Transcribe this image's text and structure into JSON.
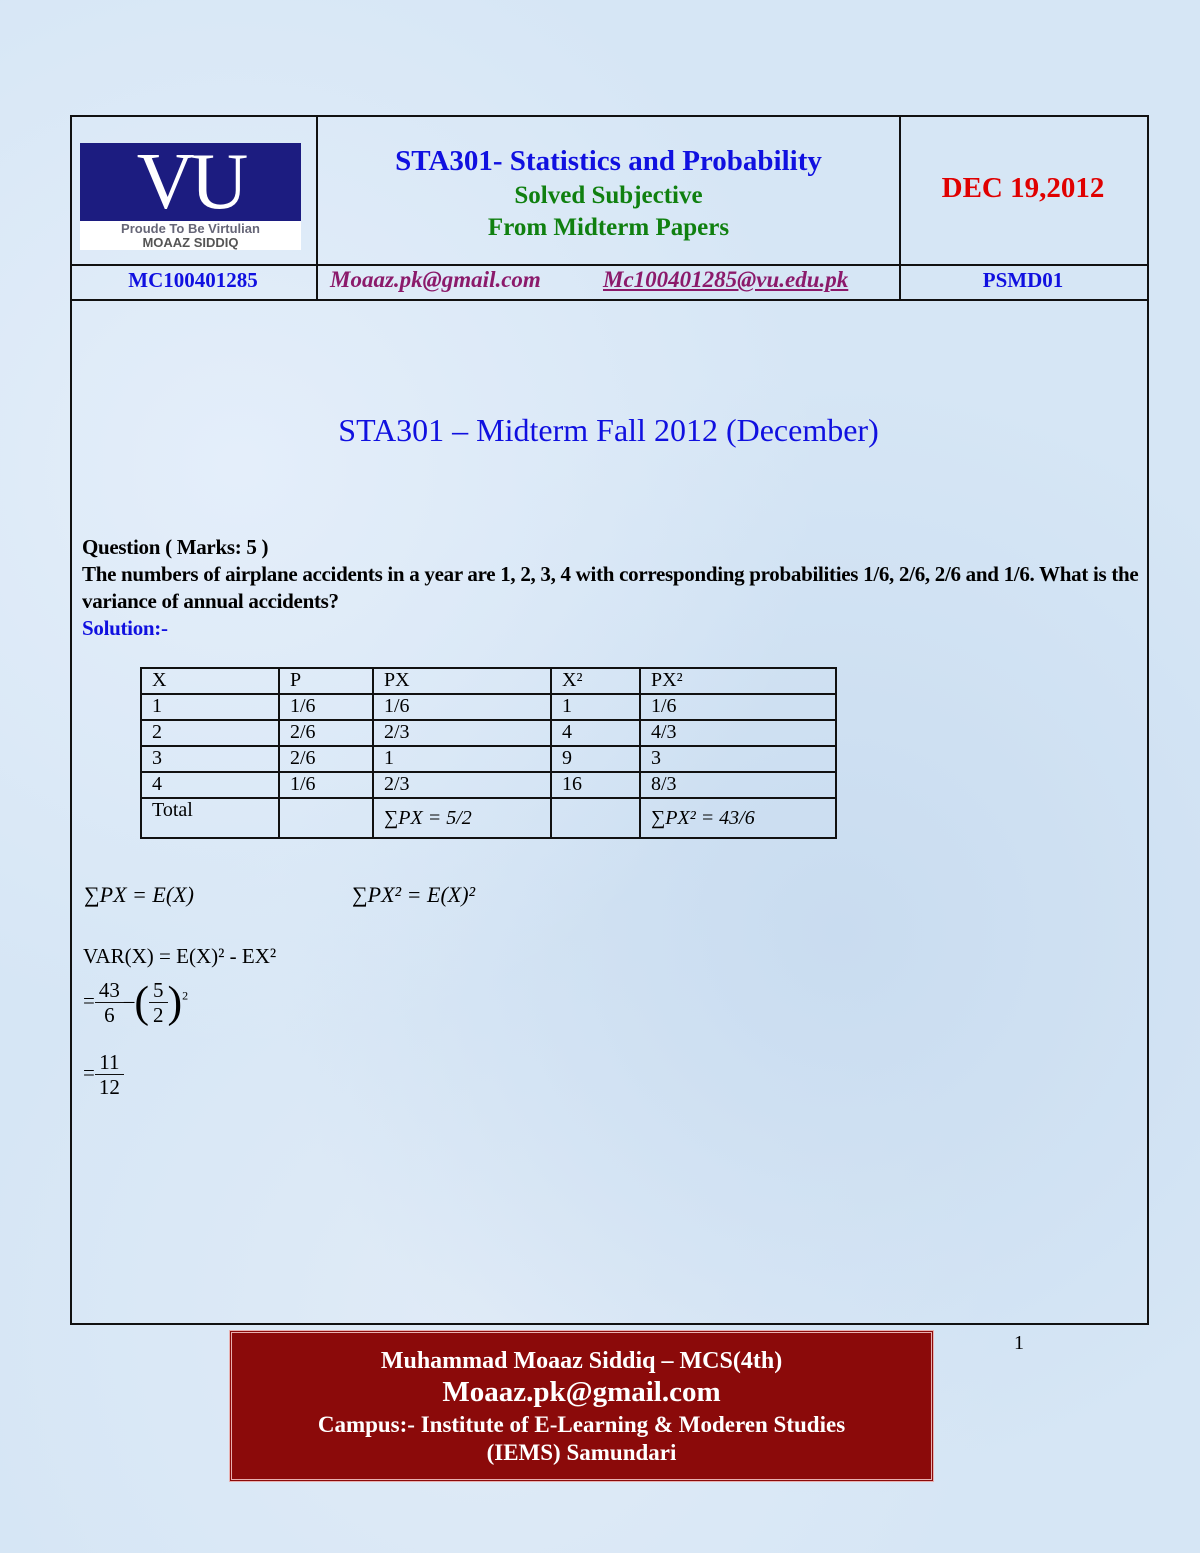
{
  "header": {
    "logo_text": "VU",
    "logo_line1": "Proude To Be Virtulian",
    "logo_line2": "MOAAZ SIDDIQ",
    "course": "STA301- Statistics and Probability",
    "sub1": "Solved Subjective",
    "sub2": "From Midterm Papers",
    "date": "DEC 19,2012",
    "id": "MC100401285",
    "email1": "Moaaz.pk@gmail.com",
    "email2": "Mc100401285@vu.edu.pk",
    "code": "PSMD01"
  },
  "title": "STA301 – Midterm Fall 2012 (December)",
  "question": {
    "heading": "Question ( Marks: 5 )",
    "text": "The numbers of airplane accidents in a year are 1, 2, 3, 4 with corresponding probabilities 1/6, 2/6, 2/6 and 1/6. What is the variance of annual accidents?",
    "solution_label": "Solution:-"
  },
  "table": {
    "headers": [
      "X",
      "P",
      "PX",
      "X²",
      "PX²"
    ],
    "rows": [
      [
        "1",
        "1/6",
        "1/6",
        "1",
        "1/6"
      ],
      [
        "2",
        "2/6",
        "2/3",
        "4",
        "4/3"
      ],
      [
        "3",
        "2/6",
        "1",
        "9",
        "3"
      ],
      [
        "4",
        "1/6",
        "2/3",
        "16",
        "8/3"
      ]
    ],
    "total": [
      "Total",
      "",
      "∑PX = 5/2",
      "",
      "∑PX² = 43/6"
    ]
  },
  "formulas": {
    "f1": "∑PX = E(X)",
    "f2": "∑PX² = E(X)²",
    "var": "VAR(X) = E(X)² - EX²",
    "step1_num": "43",
    "step1_den": "6",
    "step1_inner_num": "5",
    "step1_inner_den": "2",
    "result_num": "11",
    "result_den": "12"
  },
  "page_number": "1",
  "footer": {
    "line1": "Muhammad Moaaz Siddiq – MCS(4th)",
    "line2": "Moaaz.pk@gmail.com",
    "line3": "Campus:- Institute of E-Learning & Moderen Studies",
    "line4": "(IEMS) Samundari"
  },
  "colors": {
    "blue": "#1010e0",
    "green": "#108010",
    "red": "#e00000",
    "purple": "#8b1a6b",
    "footer_bg": "#8b0a0a"
  }
}
